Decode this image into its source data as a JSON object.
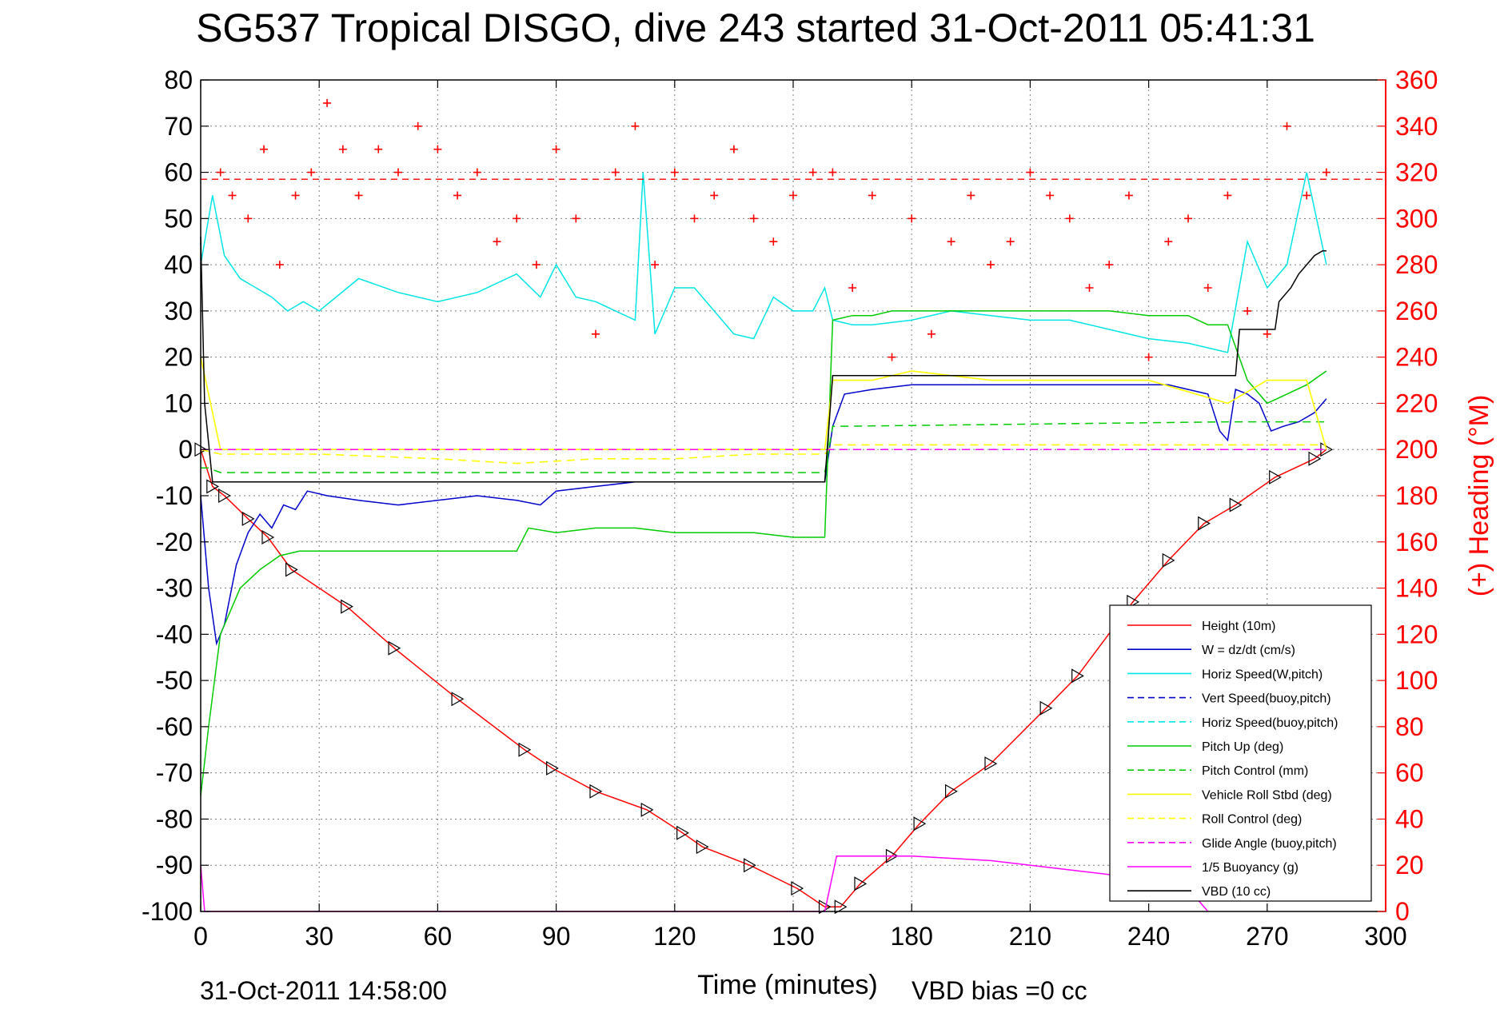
{
  "chart_data": {
    "type": "line",
    "title": "SG537 Tropical DISGO, dive 243 started 31-Oct-2011 05:41:31",
    "xlabel": "Time (minutes)",
    "ylabel": "",
    "y2label": "(+) Heading (°M)",
    "xlim": [
      0,
      300
    ],
    "ylim": [
      -100,
      80
    ],
    "y2lim": [
      0,
      360
    ],
    "x_ticks": [
      "0",
      "30",
      "60",
      "90",
      "120",
      "150",
      "180",
      "210",
      "240",
      "270",
      "300"
    ],
    "y_ticks": [
      "80",
      "70",
      "60",
      "50",
      "40",
      "30",
      "20",
      "10",
      "0",
      "-10",
      "-20",
      "-30",
      "-40",
      "-50",
      "-60",
      "-70",
      "-80",
      "-90",
      "-100"
    ],
    "y2_ticks": [
      "360",
      "340",
      "320",
      "300",
      "280",
      "260",
      "240",
      "220",
      "200",
      "180",
      "160",
      "140",
      "120",
      "100",
      "80",
      "60",
      "40",
      "20",
      "0"
    ],
    "grid": true,
    "legend_position": "bottom-right",
    "reference_heading_deg": 317,
    "footer_left": "31-Oct-2011 14:58:00",
    "footer_right": "VBD bias =0 cc",
    "series": [
      {
        "name": "Height (10m)",
        "color": "#ff0000",
        "style": "solid",
        "x": [
          0,
          3,
          6,
          12,
          17,
          23,
          37,
          49,
          65,
          82,
          89,
          100,
          113,
          122,
          127,
          139,
          151,
          158,
          162,
          167,
          175,
          182,
          190,
          200,
          214,
          222,
          236,
          245,
          254,
          262,
          272,
          282,
          285
        ],
        "y": [
          0,
          -8,
          -10,
          -15,
          -19,
          -26,
          -34,
          -43,
          -54,
          -65,
          -69,
          -74,
          -78,
          -83,
          -86,
          -90,
          -95,
          -99,
          -99,
          -94,
          -88,
          -81,
          -74,
          -68,
          -56,
          -49,
          -33,
          -24,
          -16,
          -12,
          -6,
          -2,
          0
        ]
      },
      {
        "name": "W = dz/dt (cm/s)",
        "color": "#0000cc",
        "style": "solid",
        "x": [
          0,
          2,
          4,
          6,
          9,
          12,
          15,
          18,
          21,
          24,
          27,
          32,
          40,
          50,
          60,
          70,
          80,
          86,
          90,
          100,
          110,
          120,
          130,
          140,
          150,
          155,
          158,
          160,
          163,
          170,
          180,
          190,
          200,
          210,
          220,
          230,
          240,
          245,
          250,
          255,
          258,
          260,
          262,
          265,
          268,
          271,
          274,
          278,
          282,
          285
        ],
        "y": [
          -10,
          -30,
          -42,
          -38,
          -25,
          -18,
          -14,
          -17,
          -12,
          -13,
          -9,
          -10,
          -11,
          -12,
          -11,
          -10,
          -11,
          -12,
          -9,
          -8,
          -7,
          -7,
          -7,
          -7,
          -7,
          -7,
          -7,
          5,
          12,
          13,
          14,
          14,
          14,
          14,
          14,
          14,
          14,
          14,
          13,
          12,
          4,
          2,
          13,
          12,
          10,
          4,
          5,
          6,
          8,
          11
        ]
      },
      {
        "name": "Horiz Speed(W,pitch)",
        "color": "#00e5e5",
        "style": "solid",
        "x": [
          0,
          3,
          6,
          10,
          14,
          18,
          22,
          26,
          30,
          40,
          50,
          60,
          70,
          80,
          86,
          90,
          95,
          100,
          105,
          110,
          112,
          115,
          120,
          125,
          130,
          135,
          140,
          145,
          150,
          155,
          158,
          160,
          165,
          170,
          180,
          190,
          200,
          210,
          220,
          230,
          240,
          250,
          260,
          265,
          270,
          275,
          280,
          285
        ],
        "y": [
          40,
          55,
          42,
          37,
          35,
          33,
          30,
          32,
          30,
          37,
          34,
          32,
          34,
          38,
          33,
          40,
          33,
          32,
          30,
          28,
          60,
          25,
          35,
          35,
          30,
          25,
          24,
          33,
          30,
          30,
          35,
          28,
          27,
          27,
          28,
          30,
          29,
          28,
          28,
          26,
          24,
          23,
          21,
          45,
          35,
          40,
          60,
          40
        ]
      },
      {
        "name": "Vert Speed(buoy,pitch)",
        "color": "#0000cc",
        "style": "dashed",
        "x": [],
        "y": []
      },
      {
        "name": "Horiz Speed(buoy,pitch)",
        "color": "#00e5e5",
        "style": "dashed",
        "x": [],
        "y": []
      },
      {
        "name": "Pitch Up (deg)",
        "color": "#00cc00",
        "style": "solid",
        "x": [
          0,
          2,
          5,
          10,
          15,
          20,
          25,
          30,
          40,
          50,
          60,
          70,
          80,
          83,
          90,
          100,
          110,
          120,
          130,
          140,
          150,
          155,
          158,
          160,
          165,
          170,
          175,
          180,
          190,
          200,
          210,
          220,
          230,
          240,
          250,
          255,
          260,
          265,
          270,
          275,
          280,
          285
        ],
        "y": [
          -75,
          -60,
          -40,
          -30,
          -26,
          -23,
          -22,
          -22,
          -22,
          -22,
          -22,
          -22,
          -22,
          -17,
          -18,
          -17,
          -17,
          -18,
          -18,
          -18,
          -19,
          -19,
          -19,
          28,
          29,
          29,
          30,
          30,
          30,
          30,
          30,
          30,
          30,
          29,
          29,
          27,
          27,
          15,
          10,
          12,
          14,
          17
        ]
      },
      {
        "name": "Pitch Control (mm)",
        "color": "#00cc00",
        "style": "dashed",
        "x": [
          0,
          2,
          5,
          158,
          160,
          260,
          262,
          285
        ],
        "y": [
          -4,
          -4,
          -5,
          -5,
          5,
          6,
          6,
          6
        ]
      },
      {
        "name": "Vehicle Roll Stbd (deg)",
        "color": "#ffff00",
        "style": "solid",
        "x": [
          0,
          5,
          10,
          20,
          30,
          60,
          80,
          90,
          100,
          120,
          140,
          150,
          155,
          158,
          160,
          170,
          180,
          200,
          220,
          240,
          260,
          270,
          280,
          285
        ],
        "y": [
          20,
          0,
          0,
          0,
          0,
          0,
          0,
          0,
          0,
          0,
          0,
          0,
          0,
          0,
          15,
          15,
          17,
          15,
          15,
          15,
          10,
          15,
          15,
          0
        ]
      },
      {
        "name": "Roll Control (deg)",
        "color": "#ffff00",
        "style": "dashed",
        "x": [
          0,
          5,
          30,
          60,
          80,
          100,
          120,
          140,
          158,
          160,
          200,
          240,
          260,
          285
        ],
        "y": [
          0,
          -1,
          -1,
          -2,
          -3,
          -2,
          -2,
          -1,
          -1,
          1,
          1,
          1,
          1,
          1
        ]
      },
      {
        "name": "Glide Angle (buoy,pitch)",
        "color": "#ff00ff",
        "style": "dashed",
        "x": [
          0,
          285
        ],
        "y": [
          0,
          0
        ]
      },
      {
        "name": "1/5 Buoyancy (g)",
        "color": "#ff00ff",
        "style": "solid",
        "x": [
          0,
          1,
          158,
          161,
          180,
          200,
          220,
          240,
          250,
          255
        ],
        "y": [
          -90,
          -100,
          -100,
          -88,
          -88,
          -89,
          -91,
          -93,
          -95,
          -100
        ]
      },
      {
        "name": "VBD (10 cc)",
        "color": "#000000",
        "style": "solid",
        "x": [
          0,
          1,
          3,
          158,
          160,
          262,
          263,
          272,
          273,
          276,
          278,
          280,
          282,
          284,
          285
        ],
        "y": [
          46,
          10,
          -7,
          -7,
          16,
          16,
          26,
          26,
          32,
          35,
          38,
          40,
          42,
          43,
          43
        ]
      },
      {
        "name": "Heading (+)",
        "color": "#ff0000",
        "style": "markers-plus",
        "axis": "right",
        "x": [
          5,
          8,
          12,
          16,
          20,
          24,
          28,
          32,
          36,
          40,
          45,
          50,
          55,
          60,
          65,
          70,
          75,
          80,
          85,
          90,
          95,
          100,
          105,
          110,
          115,
          120,
          125,
          130,
          135,
          140,
          145,
          150,
          155,
          160,
          165,
          170,
          175,
          180,
          185,
          190,
          195,
          200,
          205,
          210,
          215,
          220,
          225,
          230,
          235,
          240,
          245,
          250,
          255,
          260,
          265,
          270,
          275,
          280,
          285
        ],
        "y": [
          320,
          310,
          300,
          330,
          280,
          310,
          320,
          350,
          330,
          310,
          330,
          320,
          340,
          330,
          310,
          320,
          290,
          300,
          280,
          330,
          300,
          250,
          320,
          340,
          280,
          320,
          300,
          310,
          330,
          300,
          290,
          310,
          320,
          320,
          270,
          310,
          240,
          300,
          250,
          290,
          310,
          280,
          290,
          320,
          310,
          300,
          270,
          280,
          310,
          240,
          290,
          300,
          270,
          310,
          260,
          250,
          340,
          310,
          320
        ]
      }
    ]
  }
}
